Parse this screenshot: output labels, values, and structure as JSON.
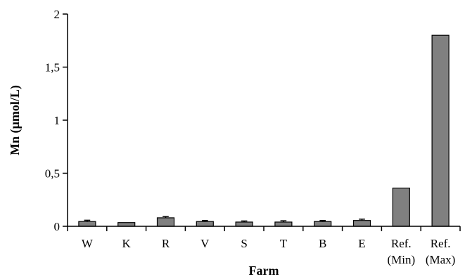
{
  "chart_data": {
    "type": "bar",
    "xlabel": "Farm",
    "ylabel": "Mn (µmol/L)",
    "ylim": [
      0,
      2
    ],
    "y_ticks": [
      {
        "value": 0,
        "label": "0"
      },
      {
        "value": 0.5,
        "label": "0,5"
      },
      {
        "value": 1,
        "label": "1"
      },
      {
        "value": 1.5,
        "label": "1,5"
      },
      {
        "value": 2,
        "label": "2"
      }
    ],
    "categories": [
      {
        "line1": "W",
        "line2": ""
      },
      {
        "line1": "K",
        "line2": ""
      },
      {
        "line1": "R",
        "line2": ""
      },
      {
        "line1": "V",
        "line2": ""
      },
      {
        "line1": "S",
        "line2": ""
      },
      {
        "line1": "T",
        "line2": ""
      },
      {
        "line1": "B",
        "line2": ""
      },
      {
        "line1": "E",
        "line2": ""
      },
      {
        "line1": "Ref.",
        "line2": "(Min)"
      },
      {
        "line1": "Ref.",
        "line2": "(Max)"
      }
    ],
    "values": [
      0.045,
      0.035,
      0.08,
      0.045,
      0.04,
      0.04,
      0.045,
      0.055,
      0.36,
      1.8
    ],
    "error": [
      0.012,
      0.0,
      0.012,
      0.01,
      0.01,
      0.012,
      0.01,
      0.012,
      0.0,
      0.0
    ],
    "bar_color": "#808080",
    "bar_edge_color": "#000000",
    "grid": false,
    "legend": "none"
  }
}
